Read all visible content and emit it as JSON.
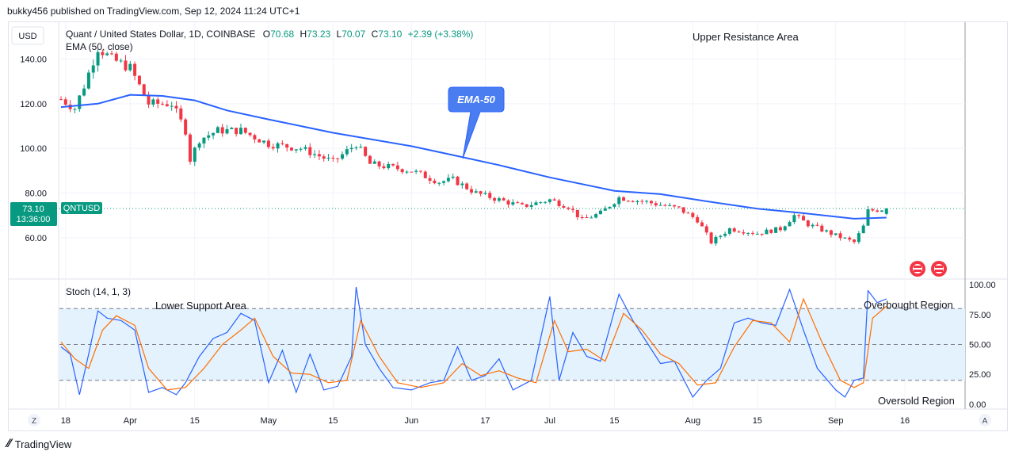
{
  "header": {
    "published_by": "bukky456 published on TradingView.com, Sep 12, 2024 11:24 UTC+1"
  },
  "footer": {
    "brand": "TradingView"
  },
  "colors": {
    "up": "#089981",
    "down": "#f23645",
    "ema": "#2962ff",
    "stoch_k": "#2962ff",
    "stoch_d": "#ff6d00",
    "band_fill": "#e3f2fd",
    "grid": "#f0f3fa",
    "price_tag": "#089981"
  },
  "chart_data": [
    {
      "type": "candlestick",
      "symbol_line": "Quant / United States Dollar, 1D, COINBASE",
      "ohlc": {
        "o_label": "O",
        "o": "70.68",
        "h_label": "H",
        "h": "73.23",
        "l_label": "L",
        "l": "70.07",
        "c_label": "C",
        "c": "73.10",
        "change": "+2.39 (+3.38%)"
      },
      "indicator_label": "EMA (50, close)",
      "currency_button": "USD",
      "y_ticks": [
        "140.00",
        "120.00",
        "100.00",
        "80.00",
        "60.00"
      ],
      "y_tick_values": [
        140,
        120,
        100,
        80,
        60
      ],
      "ylim": [
        41.5,
        156.5
      ],
      "last_price": {
        "value": "73.10",
        "countdown": "13:36:00",
        "ticker": "QNTUSD"
      },
      "x_ticks": [
        "18",
        "Apr",
        "15",
        "May",
        "15",
        "Jun",
        "17",
        "Jul",
        "15",
        "Aug",
        "15",
        "Sep",
        "16"
      ],
      "x_tick_dates": [
        "2024-03-18",
        "2024-04-01",
        "2024-04-15",
        "2024-05-01",
        "2024-05-15",
        "2024-06-01",
        "2024-06-17",
        "2024-07-01",
        "2024-07-15",
        "2024-08-01",
        "2024-08-15",
        "2024-09-01",
        "2024-09-16"
      ],
      "first_bar_date": "2024-03-17",
      "last_bar_date": "2024-09-12",
      "annotations": {
        "upper_resistance": "Upper Resistance Area",
        "ema_callout": "EMA-50"
      },
      "ema_50": [
        [
          "2024-03-17",
          118.5
        ],
        [
          "2024-03-25",
          120.0
        ],
        [
          "2024-04-01",
          124.0
        ],
        [
          "2024-04-08",
          123.5
        ],
        [
          "2024-04-15",
          121.5
        ],
        [
          "2024-04-22",
          117.0
        ],
        [
          "2024-05-01",
          113.0
        ],
        [
          "2024-05-15",
          107.0
        ],
        [
          "2024-06-01",
          101.0
        ],
        [
          "2024-06-10",
          97.0
        ],
        [
          "2024-06-20",
          92.5
        ],
        [
          "2024-07-01",
          87.0
        ],
        [
          "2024-07-15",
          81.0
        ],
        [
          "2024-07-25",
          79.5
        ],
        [
          "2024-08-05",
          76.0
        ],
        [
          "2024-08-15",
          73.0
        ],
        [
          "2024-08-25",
          71.0
        ],
        [
          "2024-09-05",
          68.5
        ],
        [
          "2024-09-12",
          69.0
        ]
      ],
      "price_path": [
        [
          "2024-03-17",
          122
        ],
        [
          "2024-03-20",
          118
        ],
        [
          "2024-03-22",
          128
        ],
        [
          "2024-03-25",
          145
        ],
        [
          "2024-03-28",
          140
        ],
        [
          "2024-04-01",
          136
        ],
        [
          "2024-04-05",
          120
        ],
        [
          "2024-04-10",
          120
        ],
        [
          "2024-04-13",
          108
        ],
        [
          "2024-04-14",
          95
        ],
        [
          "2024-04-16",
          104
        ],
        [
          "2024-04-20",
          108
        ],
        [
          "2024-04-25",
          108
        ],
        [
          "2024-05-01",
          102
        ],
        [
          "2024-05-08",
          100
        ],
        [
          "2024-05-15",
          94
        ],
        [
          "2024-05-20",
          102
        ],
        [
          "2024-05-23",
          93
        ],
        [
          "2024-06-01",
          90
        ],
        [
          "2024-06-07",
          85
        ],
        [
          "2024-06-10",
          86
        ],
        [
          "2024-06-15",
          80
        ],
        [
          "2024-06-20",
          77
        ],
        [
          "2024-06-25",
          74
        ],
        [
          "2024-07-01",
          77
        ],
        [
          "2024-07-05",
          74
        ],
        [
          "2024-07-08",
          68
        ],
        [
          "2024-07-12",
          71
        ],
        [
          "2024-07-16",
          78
        ],
        [
          "2024-07-22",
          76
        ],
        [
          "2024-07-29",
          73
        ],
        [
          "2024-08-02",
          68
        ],
        [
          "2024-08-05",
          58
        ],
        [
          "2024-08-09",
          64
        ],
        [
          "2024-08-15",
          62
        ],
        [
          "2024-08-20",
          64
        ],
        [
          "2024-08-23",
          70
        ],
        [
          "2024-08-26",
          66
        ],
        [
          "2024-09-01",
          61
        ],
        [
          "2024-09-05",
          58
        ],
        [
          "2024-09-07",
          65
        ],
        [
          "2024-09-08",
          72
        ],
        [
          "2024-09-12",
          73.1
        ]
      ]
    },
    {
      "type": "line",
      "indicator_label": "Stoch (14, 1, 3)",
      "y_ticks": [
        "100.00",
        "75.00",
        "50.00",
        "25.00",
        "0.00"
      ],
      "y_tick_values": [
        100,
        75,
        50,
        25,
        0
      ],
      "ylim": [
        -4,
        104
      ],
      "band": [
        20,
        80
      ],
      "annotations": {
        "lower_support": "Lower Support Area",
        "overbought": "Overbought Region",
        "oversold": "Oversold Region"
      },
      "series": [
        {
          "values": [
            [
              "2024-03-17",
              48
            ],
            [
              "2024-03-19",
              42
            ],
            [
              "2024-03-21",
              8
            ],
            [
              "2024-03-23",
              42
            ],
            [
              "2024-03-25",
              78
            ],
            [
              "2024-03-27",
              72
            ],
            [
              "2024-03-30",
              70
            ],
            [
              "2024-04-02",
              62
            ],
            [
              "2024-04-05",
              10
            ],
            [
              "2024-04-08",
              14
            ],
            [
              "2024-04-11",
              8
            ],
            [
              "2024-04-13",
              18
            ],
            [
              "2024-04-16",
              40
            ],
            [
              "2024-04-19",
              55
            ],
            [
              "2024-04-22",
              60
            ],
            [
              "2024-04-25",
              76
            ],
            [
              "2024-04-28",
              70
            ],
            [
              "2024-05-01",
              18
            ],
            [
              "2024-05-04",
              45
            ],
            [
              "2024-05-07",
              10
            ],
            [
              "2024-05-10",
              42
            ],
            [
              "2024-05-13",
              12
            ],
            [
              "2024-05-16",
              15
            ],
            [
              "2024-05-19",
              40
            ],
            [
              "2024-05-20",
              98
            ],
            [
              "2024-05-22",
              50
            ],
            [
              "2024-05-25",
              30
            ],
            [
              "2024-05-28",
              14
            ],
            [
              "2024-06-01",
              12
            ],
            [
              "2024-06-05",
              18
            ],
            [
              "2024-06-08",
              20
            ],
            [
              "2024-06-11",
              48
            ],
            [
              "2024-06-14",
              20
            ],
            [
              "2024-06-17",
              24
            ],
            [
              "2024-06-20",
              38
            ],
            [
              "2024-06-23",
              12
            ],
            [
              "2024-06-27",
              20
            ],
            [
              "2024-07-01",
              90
            ],
            [
              "2024-07-03",
              20
            ],
            [
              "2024-07-06",
              60
            ],
            [
              "2024-07-09",
              40
            ],
            [
              "2024-07-12",
              36
            ],
            [
              "2024-07-16",
              92
            ],
            [
              "2024-07-19",
              70
            ],
            [
              "2024-07-22",
              52
            ],
            [
              "2024-07-25",
              34
            ],
            [
              "2024-07-28",
              36
            ],
            [
              "2024-08-01",
              6
            ],
            [
              "2024-08-04",
              20
            ],
            [
              "2024-08-07",
              30
            ],
            [
              "2024-08-10",
              68
            ],
            [
              "2024-08-13",
              72
            ],
            [
              "2024-08-16",
              68
            ],
            [
              "2024-08-19",
              66
            ],
            [
              "2024-08-22",
              96
            ],
            [
              "2024-08-25",
              62
            ],
            [
              "2024-08-28",
              30
            ],
            [
              "2024-09-01",
              12
            ],
            [
              "2024-09-03",
              6
            ],
            [
              "2024-09-05",
              20
            ],
            [
              "2024-09-07",
              22
            ],
            [
              "2024-09-08",
              95
            ],
            [
              "2024-09-10",
              85
            ],
            [
              "2024-09-12",
              88
            ]
          ]
        },
        {
          "values": [
            [
              "2024-03-17",
              52
            ],
            [
              "2024-03-20",
              38
            ],
            [
              "2024-03-23",
              30
            ],
            [
              "2024-03-26",
              62
            ],
            [
              "2024-03-29",
              74
            ],
            [
              "2024-04-02",
              66
            ],
            [
              "2024-04-05",
              30
            ],
            [
              "2024-04-09",
              12
            ],
            [
              "2024-04-13",
              14
            ],
            [
              "2024-04-17",
              30
            ],
            [
              "2024-04-21",
              50
            ],
            [
              "2024-04-25",
              62
            ],
            [
              "2024-04-28",
              72
            ],
            [
              "2024-05-02",
              40
            ],
            [
              "2024-05-06",
              26
            ],
            [
              "2024-05-10",
              25
            ],
            [
              "2024-05-14",
              18
            ],
            [
              "2024-05-18",
              20
            ],
            [
              "2024-05-21",
              70
            ],
            [
              "2024-05-25",
              40
            ],
            [
              "2024-05-29",
              18
            ],
            [
              "2024-06-03",
              14
            ],
            [
              "2024-06-08",
              18
            ],
            [
              "2024-06-12",
              34
            ],
            [
              "2024-06-16",
              24
            ],
            [
              "2024-06-20",
              28
            ],
            [
              "2024-06-24",
              22
            ],
            [
              "2024-06-28",
              18
            ],
            [
              "2024-07-02",
              70
            ],
            [
              "2024-07-05",
              44
            ],
            [
              "2024-07-09",
              46
            ],
            [
              "2024-07-13",
              36
            ],
            [
              "2024-07-17",
              76
            ],
            [
              "2024-07-21",
              62
            ],
            [
              "2024-07-25",
              42
            ],
            [
              "2024-07-29",
              34
            ],
            [
              "2024-08-02",
              16
            ],
            [
              "2024-08-06",
              18
            ],
            [
              "2024-08-10",
              48
            ],
            [
              "2024-08-14",
              70
            ],
            [
              "2024-08-18",
              68
            ],
            [
              "2024-08-22",
              52
            ],
            [
              "2024-08-25",
              88
            ],
            [
              "2024-08-29",
              52
            ],
            [
              "2024-09-02",
              20
            ],
            [
              "2024-09-05",
              14
            ],
            [
              "2024-09-07",
              18
            ],
            [
              "2024-09-09",
              72
            ],
            [
              "2024-09-12",
              82
            ]
          ]
        }
      ]
    }
  ],
  "axis_buttons": {
    "left": "Z",
    "right": "A"
  }
}
